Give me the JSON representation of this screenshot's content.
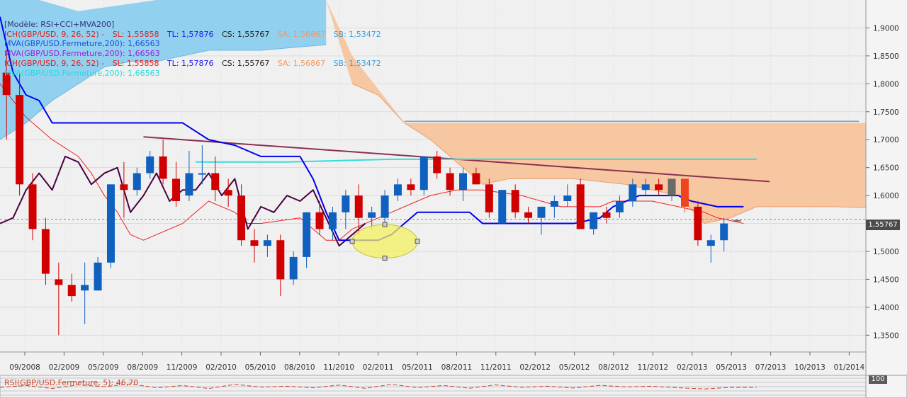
{
  "legend": {
    "model": "[Modèle: RSI+CCI+MVA200]",
    "ich1": {
      "name": "ICH(GBP/USD, 9, 26, 52) -",
      "sl": "SL: 1,55858",
      "tl": "TL: 1,57876",
      "cs": "CS: 1,55767",
      "sa": "SA: 1,56867",
      "sb": "SB: 1,53472"
    },
    "mva1": "MVA(GBP/USD.Fermeture,200): 1,66563",
    "mva2": "MVA(GBP/USD.Fermeture,200): 1,66563",
    "ich2": {
      "name": "ICH(GBP/USD, 9, 26, 52) -",
      "sl": "SL: 1,55858",
      "tl": "TL: 1,57876",
      "cs": "CS: 1,55767",
      "sa": "SA: 1,56867",
      "sb": "SB: 1,53472"
    },
    "mva3": "MVA(GBP/USD.Fermeture,200): 1,66563"
  },
  "rsi_label": "RSI(GBP/USD.Fermeture, 5): 46,70",
  "price_tag": "1,55767",
  "rsi_tag": "100",
  "colors": {
    "bull": "#1060c0",
    "bear": "#d00000",
    "cloud_blue": "#8ccdee",
    "cloud_orange": "#f6c49c",
    "tenkan": "#0000ee",
    "kijun": "#ee2222",
    "chikou": "#4a0040",
    "mva_cyan": "#33dddd",
    "trend": "#8a3050",
    "hline": "#4488bb"
  },
  "chart_data": {
    "type": "candlestick",
    "x_ticks": [
      "09/2008",
      "02/2009",
      "05/2009",
      "08/2009",
      "11/2009",
      "02/2010",
      "05/2010",
      "08/2010",
      "11/2010",
      "02/2011",
      "05/2011",
      "08/2011",
      "11/2011",
      "02/2012",
      "05/2012",
      "08/2012",
      "11/2012",
      "02/2013",
      "05/2013",
      "07/2013",
      "10/2013",
      "01/2014"
    ],
    "y_ticks": [
      "1,9000",
      "1,8500",
      "1,8000",
      "1,7500",
      "1,7000",
      "1,6500",
      "1,6000",
      "1,5500",
      "1,5000",
      "1,4500",
      "1,4000",
      "1,3500"
    ],
    "ylim": [
      1.32,
      1.95
    ],
    "xlim": [
      0,
      66
    ],
    "candles": [
      [
        0.5,
        1.82,
        1.86,
        1.7,
        1.78,
        "bear"
      ],
      [
        1.5,
        1.78,
        1.82,
        1.6,
        1.62,
        "bear"
      ],
      [
        2.5,
        1.62,
        1.64,
        1.52,
        1.54,
        "bear"
      ],
      [
        3.5,
        1.54,
        1.56,
        1.44,
        1.46,
        "bear"
      ],
      [
        4.5,
        1.45,
        1.48,
        1.35,
        1.44,
        "bear"
      ],
      [
        5.5,
        1.44,
        1.46,
        1.41,
        1.42,
        "bear"
      ],
      [
        6.5,
        1.43,
        1.48,
        1.37,
        1.44,
        "bull"
      ],
      [
        7.5,
        1.43,
        1.49,
        1.43,
        1.48,
        "bull"
      ],
      [
        8.5,
        1.48,
        1.62,
        1.47,
        1.62,
        "bull"
      ],
      [
        9.5,
        1.61,
        1.66,
        1.56,
        1.62,
        "bear"
      ],
      [
        10.5,
        1.61,
        1.65,
        1.6,
        1.64,
        "bull"
      ],
      [
        11.5,
        1.64,
        1.68,
        1.63,
        1.67,
        "bull"
      ],
      [
        12.5,
        1.67,
        1.7,
        1.62,
        1.63,
        "bear"
      ],
      [
        13.5,
        1.63,
        1.66,
        1.58,
        1.59,
        "bear"
      ],
      [
        14.5,
        1.6,
        1.68,
        1.59,
        1.64,
        "bull"
      ],
      [
        15.5,
        1.64,
        1.69,
        1.62,
        1.64,
        "bull"
      ],
      [
        16.5,
        1.64,
        1.67,
        1.59,
        1.61,
        "bear"
      ],
      [
        17.5,
        1.61,
        1.63,
        1.58,
        1.6,
        "bear"
      ],
      [
        18.5,
        1.6,
        1.62,
        1.51,
        1.52,
        "bear"
      ],
      [
        19.5,
        1.52,
        1.54,
        1.48,
        1.51,
        "bear"
      ],
      [
        20.5,
        1.51,
        1.53,
        1.49,
        1.52,
        "bull"
      ],
      [
        21.5,
        1.52,
        1.53,
        1.42,
        1.45,
        "bear"
      ],
      [
        22.5,
        1.45,
        1.5,
        1.44,
        1.49,
        "bull"
      ],
      [
        23.5,
        1.49,
        1.57,
        1.47,
        1.57,
        "bull"
      ],
      [
        24.5,
        1.57,
        1.59,
        1.53,
        1.54,
        "bear"
      ],
      [
        25.5,
        1.54,
        1.58,
        1.52,
        1.57,
        "bull"
      ],
      [
        26.5,
        1.57,
        1.61,
        1.54,
        1.6,
        "bull"
      ],
      [
        27.5,
        1.6,
        1.62,
        1.53,
        1.56,
        "bear"
      ],
      [
        28.5,
        1.56,
        1.58,
        1.54,
        1.57,
        "bull"
      ],
      [
        29.5,
        1.56,
        1.61,
        1.55,
        1.6,
        "bull"
      ],
      [
        30.5,
        1.6,
        1.63,
        1.59,
        1.62,
        "bull"
      ],
      [
        31.5,
        1.62,
        1.63,
        1.6,
        1.61,
        "bear"
      ],
      [
        32.5,
        1.61,
        1.67,
        1.6,
        1.67,
        "bull"
      ],
      [
        33.5,
        1.67,
        1.68,
        1.63,
        1.64,
        "bear"
      ],
      [
        34.5,
        1.64,
        1.65,
        1.6,
        1.61,
        "bear"
      ],
      [
        35.5,
        1.61,
        1.65,
        1.59,
        1.64,
        "bull"
      ],
      [
        36.5,
        1.64,
        1.65,
        1.62,
        1.62,
        "bear"
      ],
      [
        37.5,
        1.62,
        1.63,
        1.56,
        1.57,
        "bear"
      ],
      [
        38.5,
        1.55,
        1.61,
        1.55,
        1.61,
        "bull"
      ],
      [
        39.5,
        1.61,
        1.62,
        1.56,
        1.57,
        "bear"
      ],
      [
        40.5,
        1.57,
        1.58,
        1.55,
        1.56,
        "bear"
      ],
      [
        41.5,
        1.56,
        1.58,
        1.53,
        1.58,
        "bull"
      ],
      [
        42.5,
        1.58,
        1.6,
        1.56,
        1.59,
        "bull"
      ],
      [
        43.5,
        1.59,
        1.62,
        1.58,
        1.6,
        "bull"
      ],
      [
        44.5,
        1.62,
        1.63,
        1.54,
        1.54,
        "bear"
      ],
      [
        45.5,
        1.54,
        1.57,
        1.53,
        1.57,
        "bull"
      ],
      [
        46.5,
        1.57,
        1.58,
        1.55,
        1.56,
        "bear"
      ],
      [
        47.5,
        1.57,
        1.6,
        1.56,
        1.59,
        "bull"
      ],
      [
        48.5,
        1.59,
        1.63,
        1.58,
        1.62,
        "bull"
      ],
      [
        49.5,
        1.62,
        1.63,
        1.6,
        1.61,
        "bull"
      ],
      [
        50.5,
        1.62,
        1.63,
        1.6,
        1.61,
        "bear"
      ],
      [
        51.5,
        1.6,
        1.63,
        1.59,
        1.63,
        "gray"
      ],
      [
        52.5,
        1.63,
        1.63,
        1.57,
        1.58,
        "orange"
      ],
      [
        53.5,
        1.58,
        1.59,
        1.51,
        1.52,
        "bear"
      ],
      [
        54.5,
        1.51,
        1.53,
        1.48,
        1.52,
        "bull"
      ],
      [
        55.5,
        1.52,
        1.56,
        1.5,
        1.55,
        "bull"
      ],
      [
        56.5,
        1.555,
        1.558,
        1.553,
        1.556,
        "gray"
      ]
    ],
    "tenkan": [
      [
        0,
        1.92
      ],
      [
        1,
        1.82
      ],
      [
        2,
        1.78
      ],
      [
        3,
        1.77
      ],
      [
        4,
        1.73
      ],
      [
        14,
        1.73
      ],
      [
        16,
        1.7
      ],
      [
        18,
        1.69
      ],
      [
        20,
        1.67
      ],
      [
        23,
        1.67
      ],
      [
        24,
        1.63
      ],
      [
        25,
        1.57
      ],
      [
        26,
        1.52
      ],
      [
        29,
        1.52
      ],
      [
        30,
        1.53
      ],
      [
        32,
        1.57
      ],
      [
        36,
        1.57
      ],
      [
        37,
        1.55
      ],
      [
        44,
        1.55
      ],
      [
        46,
        1.56
      ],
      [
        47,
        1.58
      ],
      [
        49,
        1.6
      ],
      [
        52,
        1.6
      ],
      [
        53,
        1.59
      ],
      [
        55,
        1.58
      ],
      [
        57,
        1.58
      ]
    ],
    "kijun": [
      [
        0,
        1.8
      ],
      [
        2,
        1.74
      ],
      [
        4,
        1.7
      ],
      [
        6,
        1.67
      ],
      [
        7,
        1.64
      ],
      [
        8,
        1.6
      ],
      [
        9,
        1.57
      ],
      [
        10,
        1.53
      ],
      [
        11,
        1.52
      ],
      [
        14,
        1.55
      ],
      [
        16,
        1.59
      ],
      [
        18,
        1.57
      ],
      [
        19,
        1.55
      ],
      [
        20,
        1.55
      ],
      [
        23,
        1.56
      ],
      [
        25,
        1.52
      ],
      [
        26,
        1.52
      ],
      [
        27,
        1.54
      ],
      [
        29,
        1.56
      ],
      [
        31,
        1.58
      ],
      [
        33,
        1.6
      ],
      [
        35,
        1.61
      ],
      [
        37,
        1.61
      ],
      [
        40,
        1.6
      ],
      [
        43,
        1.58
      ],
      [
        46,
        1.58
      ],
      [
        47,
        1.59
      ],
      [
        50,
        1.59
      ],
      [
        52,
        1.58
      ],
      [
        54,
        1.57
      ],
      [
        55,
        1.56
      ],
      [
        57,
        1.55
      ]
    ],
    "chikou": [
      [
        0,
        1.55
      ],
      [
        1,
        1.56
      ],
      [
        2,
        1.61
      ],
      [
        3,
        1.64
      ],
      [
        4,
        1.61
      ],
      [
        5,
        1.67
      ],
      [
        6,
        1.66
      ],
      [
        7,
        1.62
      ],
      [
        8,
        1.64
      ],
      [
        9,
        1.65
      ],
      [
        10,
        1.57
      ],
      [
        11,
        1.6
      ],
      [
        12,
        1.64
      ],
      [
        13,
        1.59
      ],
      [
        14,
        1.61
      ],
      [
        15,
        1.61
      ],
      [
        16,
        1.64
      ],
      [
        17,
        1.6
      ],
      [
        18,
        1.63
      ],
      [
        19,
        1.54
      ],
      [
        20,
        1.58
      ],
      [
        21,
        1.57
      ],
      [
        22,
        1.6
      ],
      [
        23,
        1.59
      ],
      [
        24,
        1.61
      ],
      [
        25,
        1.56
      ],
      [
        26,
        1.51
      ],
      [
        27,
        1.53
      ],
      [
        28,
        1.55
      ]
    ],
    "mva_cyan": [
      [
        15,
        1.66
      ],
      [
        22,
        1.66
      ],
      [
        30,
        1.665
      ],
      [
        45,
        1.665
      ],
      [
        58,
        1.665
      ]
    ],
    "trend": [
      [
        11,
        1.705
      ],
      [
        59,
        1.625
      ]
    ],
    "cloud_blue_upper": [
      [
        0,
        1.95
      ],
      [
        3,
        1.95
      ],
      [
        6,
        1.93
      ],
      [
        9,
        1.94
      ],
      [
        12,
        1.95
      ],
      [
        15,
        1.95
      ],
      [
        25,
        1.95
      ]
    ],
    "cloud_blue_lower": [
      [
        0,
        1.7
      ],
      [
        2,
        1.73
      ],
      [
        4,
        1.77
      ],
      [
        6,
        1.8
      ],
      [
        8,
        1.83
      ],
      [
        10,
        1.84
      ],
      [
        12,
        1.84
      ],
      [
        14,
        1.85
      ],
      [
        16,
        1.86
      ],
      [
        20,
        1.86
      ],
      [
        25,
        1.87
      ]
    ],
    "cloud_orange_upper": [
      [
        25,
        1.95
      ],
      [
        27,
        1.85
      ],
      [
        29,
        1.79
      ],
      [
        31,
        1.73
      ],
      [
        68,
        1.73
      ]
    ],
    "cloud_orange_lower": [
      [
        27,
        1.8
      ],
      [
        29,
        1.78
      ],
      [
        31,
        1.73
      ],
      [
        33,
        1.7
      ],
      [
        35,
        1.66
      ],
      [
        37,
        1.62
      ],
      [
        39,
        1.63
      ],
      [
        44,
        1.63
      ],
      [
        48,
        1.62
      ],
      [
        50,
        1.61
      ],
      [
        52,
        1.6
      ],
      [
        54,
        1.55
      ],
      [
        56,
        1.56
      ],
      [
        58,
        1.58
      ],
      [
        64,
        1.58
      ],
      [
        68,
        1.577
      ]
    ],
    "hline_level": 1.733,
    "current_level": 1.55767,
    "ellipse": {
      "cx": 29.5,
      "cy": 1.518,
      "rx": 2.5,
      "ry": 0.03
    },
    "rsi": [
      [
        0,
        47
      ],
      [
        2,
        55
      ],
      [
        4,
        42
      ],
      [
        6,
        58
      ],
      [
        8,
        50
      ],
      [
        10,
        62
      ],
      [
        12,
        45
      ],
      [
        14,
        55
      ],
      [
        16,
        42
      ],
      [
        18,
        60
      ],
      [
        20,
        48
      ],
      [
        22,
        52
      ],
      [
        24,
        45
      ],
      [
        26,
        57
      ],
      [
        28,
        43
      ],
      [
        30,
        60
      ],
      [
        32,
        46
      ],
      [
        34,
        55
      ],
      [
        36,
        43
      ],
      [
        38,
        58
      ],
      [
        40,
        47
      ],
      [
        42,
        52
      ],
      [
        44,
        44
      ],
      [
        46,
        56
      ],
      [
        48,
        49
      ],
      [
        50,
        52
      ],
      [
        52,
        45
      ],
      [
        54,
        40
      ],
      [
        56,
        46.7
      ],
      [
        58,
        47
      ]
    ]
  }
}
